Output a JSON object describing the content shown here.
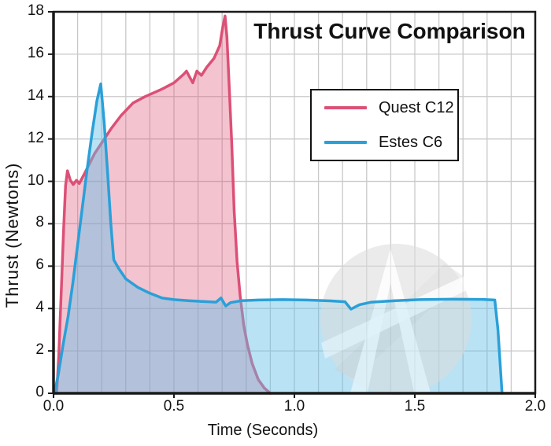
{
  "colors": {
    "background": "#ffffff",
    "grid": "#c9c9c9",
    "frame": "#1a1a1a",
    "text": "#111111",
    "watermark_gray": "#dcdcdc",
    "watermark_accent": "#cccccc",
    "watermark_white": "#ffffff"
  },
  "legend": {
    "entries": [
      {
        "label": "Quest C12",
        "color": "#dc5076"
      },
      {
        "label": "Estes C6",
        "color": "#2aa0d8"
      }
    ]
  },
  "chart_data": {
    "type": "area",
    "title": "Thrust Curve Comparison",
    "xlabel": "Time (Seconds)",
    "ylabel": "Thrust (Newtons)",
    "xlim": [
      0,
      2
    ],
    "ylim": [
      0,
      18
    ],
    "x_ticks": [
      0.0,
      0.5,
      1.0,
      1.5,
      2.0
    ],
    "x_tick_labels": [
      "0.0",
      "0.5",
      "1.0",
      "1.5",
      "2.0"
    ],
    "y_ticks": [
      0,
      2,
      4,
      6,
      8,
      10,
      12,
      14,
      16,
      18
    ],
    "y_tick_labels": [
      "0",
      "2",
      "4",
      "6",
      "8",
      "10",
      "12",
      "14",
      "16",
      "18"
    ],
    "grid": {
      "on": true,
      "x_step": 0.1,
      "y_step": 2
    },
    "legend_position": "upper-right-inside",
    "series": [
      {
        "name": "Quest C12",
        "color": "#dc5076",
        "fill": "rgba(224,80,118,0.34)",
        "peak_thrust_newtons": 17.8,
        "burn_time_seconds": 0.9,
        "points": [
          [
            0.013,
            0
          ],
          [
            0.022,
            1.8
          ],
          [
            0.032,
            4.8
          ],
          [
            0.042,
            7.8
          ],
          [
            0.05,
            9.8
          ],
          [
            0.058,
            10.5
          ],
          [
            0.07,
            10.05
          ],
          [
            0.082,
            9.85
          ],
          [
            0.095,
            10.05
          ],
          [
            0.107,
            9.9
          ],
          [
            0.13,
            10.4
          ],
          [
            0.17,
            11.3
          ],
          [
            0.205,
            11.9
          ],
          [
            0.24,
            12.5
          ],
          [
            0.28,
            13.1
          ],
          [
            0.33,
            13.7
          ],
          [
            0.38,
            14.0
          ],
          [
            0.45,
            14.35
          ],
          [
            0.5,
            14.65
          ],
          [
            0.54,
            15.05
          ],
          [
            0.552,
            15.2
          ],
          [
            0.578,
            14.65
          ],
          [
            0.595,
            15.2
          ],
          [
            0.614,
            15.0
          ],
          [
            0.637,
            15.4
          ],
          [
            0.666,
            15.8
          ],
          [
            0.69,
            16.4
          ],
          [
            0.703,
            17.3
          ],
          [
            0.712,
            17.8
          ],
          [
            0.72,
            16.8
          ],
          [
            0.73,
            14.3
          ],
          [
            0.74,
            11.8
          ],
          [
            0.75,
            8.6
          ],
          [
            0.762,
            6.2
          ],
          [
            0.775,
            4.6
          ],
          [
            0.79,
            3.2
          ],
          [
            0.805,
            2.3
          ],
          [
            0.825,
            1.4
          ],
          [
            0.85,
            0.65
          ],
          [
            0.875,
            0.25
          ],
          [
            0.9,
            0
          ]
        ]
      },
      {
        "name": "Estes C6",
        "color": "#2aa0d8",
        "fill": "rgba(100,190,230,0.45)",
        "peak_thrust_newtons": 14.6,
        "burn_time_seconds": 1.86,
        "points": [
          [
            0.004,
            0
          ],
          [
            0.02,
            0.9
          ],
          [
            0.04,
            2.3
          ],
          [
            0.06,
            3.6
          ],
          [
            0.08,
            5.2
          ],
          [
            0.1,
            7.0
          ],
          [
            0.12,
            8.8
          ],
          [
            0.14,
            10.6
          ],
          [
            0.16,
            12.3
          ],
          [
            0.18,
            13.8
          ],
          [
            0.196,
            14.6
          ],
          [
            0.21,
            12.8
          ],
          [
            0.225,
            10.3
          ],
          [
            0.238,
            8.0
          ],
          [
            0.25,
            6.3
          ],
          [
            0.27,
            5.9
          ],
          [
            0.3,
            5.4
          ],
          [
            0.35,
            5.0
          ],
          [
            0.4,
            4.72
          ],
          [
            0.45,
            4.5
          ],
          [
            0.5,
            4.42
          ],
          [
            0.56,
            4.37
          ],
          [
            0.62,
            4.33
          ],
          [
            0.675,
            4.3
          ],
          [
            0.695,
            4.5
          ],
          [
            0.715,
            4.12
          ],
          [
            0.735,
            4.28
          ],
          [
            0.78,
            4.37
          ],
          [
            0.85,
            4.4
          ],
          [
            0.95,
            4.42
          ],
          [
            1.05,
            4.4
          ],
          [
            1.15,
            4.36
          ],
          [
            1.21,
            4.32
          ],
          [
            1.235,
            3.97
          ],
          [
            1.27,
            4.18
          ],
          [
            1.32,
            4.3
          ],
          [
            1.42,
            4.37
          ],
          [
            1.52,
            4.42
          ],
          [
            1.65,
            4.44
          ],
          [
            1.78,
            4.43
          ],
          [
            1.832,
            4.4
          ],
          [
            1.845,
            3.0
          ],
          [
            1.862,
            0
          ]
        ]
      }
    ]
  }
}
